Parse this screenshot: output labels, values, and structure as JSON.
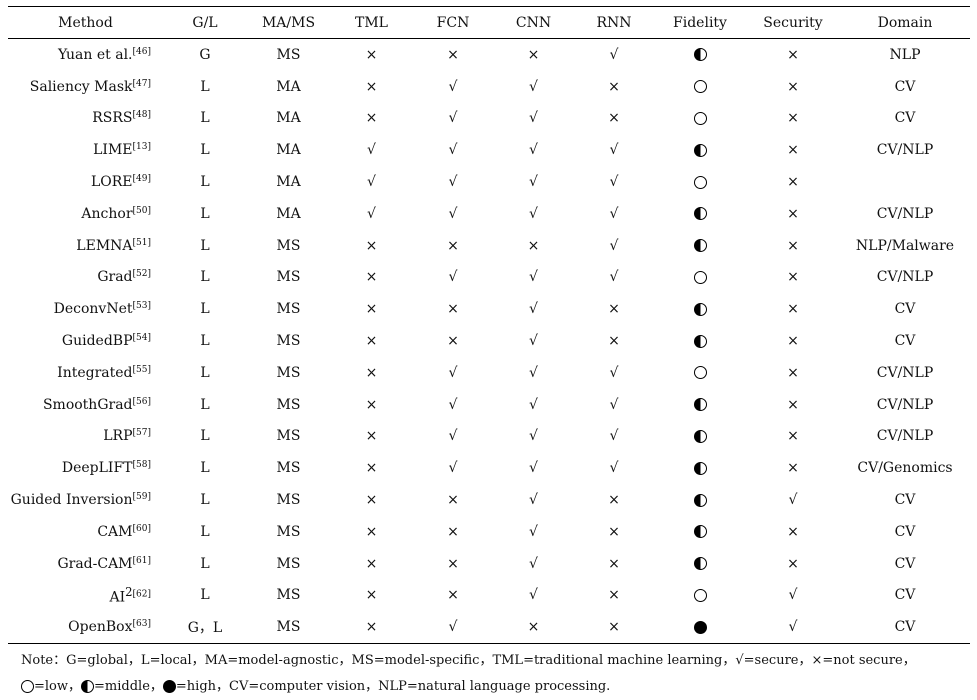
{
  "columns": [
    "Method",
    "G/L",
    "MA/MS",
    "TML",
    "FCN",
    "CNN",
    "RNN",
    "Fidelity",
    "Security",
    "Domain"
  ],
  "rows": [
    {
      "method": "Yuan et al.",
      "ref": "[46]",
      "gl": "G",
      "mams": "MS",
      "tml": "×",
      "fcn": "×",
      "cnn": "×",
      "rnn": "√",
      "fidelity": "middle",
      "security": "×",
      "domain": "NLP"
    },
    {
      "method": "Saliency Mask",
      "ref": "[47]",
      "gl": "L",
      "mams": "MA",
      "tml": "×",
      "fcn": "√",
      "cnn": "√",
      "rnn": "×",
      "fidelity": "low",
      "security": "×",
      "domain": "CV"
    },
    {
      "method": "RSRS",
      "ref": "[48]",
      "gl": "L",
      "mams": "MA",
      "tml": "×",
      "fcn": "√",
      "cnn": "√",
      "rnn": "×",
      "fidelity": "low",
      "security": "×",
      "domain": "CV"
    },
    {
      "method": "LIME",
      "ref": "[13]",
      "gl": "L",
      "mams": "MA",
      "tml": "√",
      "fcn": "√",
      "cnn": "√",
      "rnn": "√",
      "fidelity": "middle",
      "security": "×",
      "domain": "CV/NLP"
    },
    {
      "method": "LORE",
      "ref": "[49]",
      "gl": "L",
      "mams": "MA",
      "tml": "√",
      "fcn": "√",
      "cnn": "√",
      "rnn": "√",
      "fidelity": "low",
      "security": "×",
      "domain": ""
    },
    {
      "method": "Anchor",
      "ref": "[50]",
      "gl": "L",
      "mams": "MA",
      "tml": "√",
      "fcn": "√",
      "cnn": "√",
      "rnn": "√",
      "fidelity": "middle",
      "security": "×",
      "domain": "CV/NLP"
    },
    {
      "method": "LEMNA",
      "ref": "[51]",
      "gl": "L",
      "mams": "MS",
      "tml": "×",
      "fcn": "×",
      "cnn": "×",
      "rnn": "√",
      "fidelity": "middle",
      "security": "×",
      "domain": "NLP/Malware"
    },
    {
      "method": "Grad",
      "ref": "[52]",
      "gl": "L",
      "mams": "MS",
      "tml": "×",
      "fcn": "√",
      "cnn": "√",
      "rnn": "√",
      "fidelity": "low",
      "security": "×",
      "domain": "CV/NLP"
    },
    {
      "method": "DeconvNet",
      "ref": "[53]",
      "gl": "L",
      "mams": "MS",
      "tml": "×",
      "fcn": "×",
      "cnn": "√",
      "rnn": "×",
      "fidelity": "middle",
      "security": "×",
      "domain": "CV"
    },
    {
      "method": "GuidedBP",
      "ref": "[54]",
      "gl": "L",
      "mams": "MS",
      "tml": "×",
      "fcn": "×",
      "cnn": "√",
      "rnn": "×",
      "fidelity": "middle",
      "security": "×",
      "domain": "CV"
    },
    {
      "method": "Integrated",
      "ref": "[55]",
      "gl": "L",
      "mams": "MS",
      "tml": "×",
      "fcn": "√",
      "cnn": "√",
      "rnn": "√",
      "fidelity": "low",
      "security": "×",
      "domain": "CV/NLP"
    },
    {
      "method": "SmoothGrad",
      "ref": "[56]",
      "gl": "L",
      "mams": "MS",
      "tml": "×",
      "fcn": "√",
      "cnn": "√",
      "rnn": "√",
      "fidelity": "middle",
      "security": "×",
      "domain": "CV/NLP"
    },
    {
      "method": "LRP",
      "ref": "[57]",
      "gl": "L",
      "mams": "MS",
      "tml": "×",
      "fcn": "√",
      "cnn": "√",
      "rnn": "√",
      "fidelity": "middle",
      "security": "×",
      "domain": "CV/NLP"
    },
    {
      "method": "DeepLIFT",
      "ref": "[58]",
      "gl": "L",
      "mams": "MS",
      "tml": "×",
      "fcn": "√",
      "cnn": "√",
      "rnn": "√",
      "fidelity": "middle",
      "security": "×",
      "domain": "CV/Genomics"
    },
    {
      "method": "Guided Inversion",
      "ref": "[59]",
      "gl": "L",
      "mams": "MS",
      "tml": "×",
      "fcn": "×",
      "cnn": "√",
      "rnn": "×",
      "fidelity": "middle",
      "security": "√",
      "domain": "CV"
    },
    {
      "method": "CAM",
      "ref": "[60]",
      "gl": "L",
      "mams": "MS",
      "tml": "×",
      "fcn": "×",
      "cnn": "√",
      "rnn": "×",
      "fidelity": "middle",
      "security": "×",
      "domain": "CV"
    },
    {
      "method": "Grad-CAM",
      "ref": "[61]",
      "gl": "L",
      "mams": "MS",
      "tml": "×",
      "fcn": "×",
      "cnn": "√",
      "rnn": "×",
      "fidelity": "middle",
      "security": "×",
      "domain": "CV"
    },
    {
      "method": "AI",
      "sup": "2",
      "ref": "[62]",
      "gl": "L",
      "mams": "MS",
      "tml": "×",
      "fcn": "×",
      "cnn": "√",
      "rnn": "×",
      "fidelity": "low",
      "security": "√",
      "domain": "CV"
    },
    {
      "method": "OpenBox",
      "ref": "[63]",
      "gl": "G，L",
      "mams": "MS",
      "tml": "×",
      "fcn": "√",
      "cnn": "×",
      "rnn": "×",
      "fidelity": "high",
      "security": "√",
      "domain": "CV"
    }
  ],
  "note": {
    "line1": "Note：G=global，L=local，MA=model-agnostic，MS=model-specific，TML=traditional machine learning，√=secure，×=not secure，",
    "line2_low": "=low，",
    "line2_middle": "=middle，",
    "line2_high": "=high，CV=computer vision，NLP=natural language processing."
  }
}
